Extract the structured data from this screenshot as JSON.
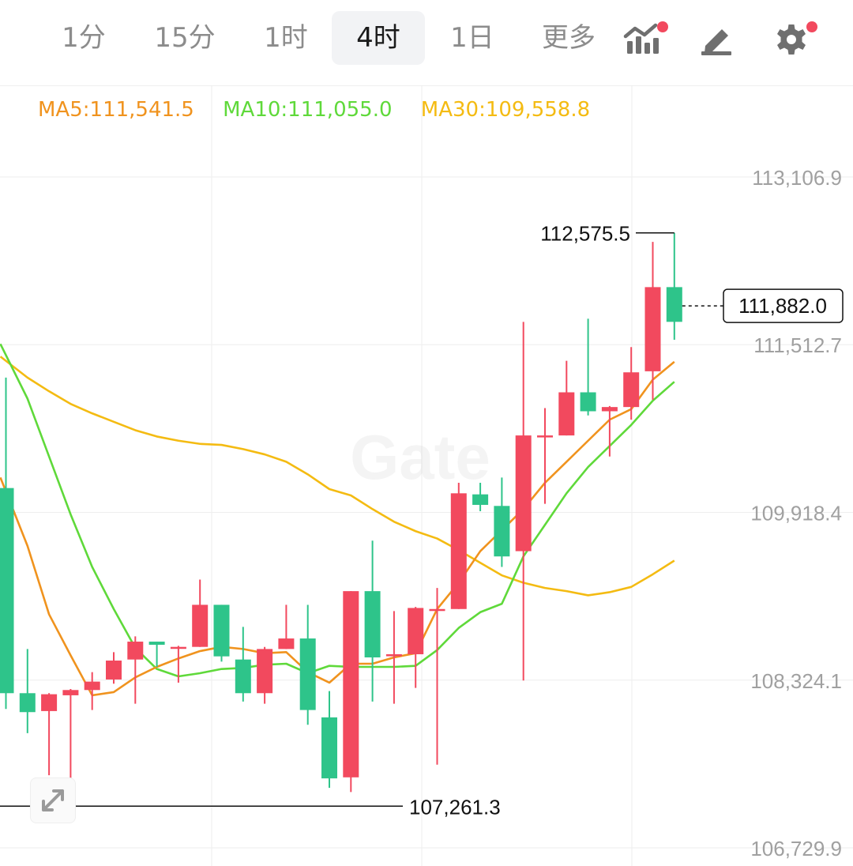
{
  "toolbar": {
    "tabs": [
      {
        "label": "1分",
        "active": false
      },
      {
        "label": "15分",
        "active": false
      },
      {
        "label": "1时",
        "active": false
      },
      {
        "label": "4时",
        "active": true
      },
      {
        "label": "1日",
        "active": false
      },
      {
        "label": "更多",
        "active": false
      }
    ],
    "icons": [
      "indicator-chart-icon",
      "drawing-pen-icon",
      "settings-gear-icon"
    ],
    "badge_color": "#f2495e"
  },
  "legend": {
    "ma5": "MA5:111,541.5",
    "ma10": "MA10:111,055.0",
    "ma30": "MA30:109,558.8"
  },
  "watermark": "Gate",
  "colors": {
    "up": "#f2495e",
    "down": "#2ec48a",
    "ma5": "#f0931e",
    "ma10": "#5fd93a",
    "ma30": "#f4bb12",
    "grid": "#eeeeee",
    "axis_text": "#a0a0a0"
  },
  "chart_data": {
    "type": "candlestick",
    "y_ticks": [
      "113,106.9",
      "111,512.7",
      "109,918.4",
      "108,324.1",
      "106,729.9"
    ],
    "y_tick_values": [
      113106.9,
      111512.7,
      109918.4,
      108324.1,
      106729.9
    ],
    "ylim": [
      106729.9,
      113106.9
    ],
    "high_label": "112,575.5",
    "high_value": 112575.5,
    "low_label": "107,261.3",
    "low_value": 107261.3,
    "last_price_label": "111,882.0",
    "last_price": 111882.0,
    "candles": [
      {
        "o": 110150,
        "c": 108200,
        "h": 111200,
        "l": 108050
      },
      {
        "o": 108200,
        "c": 108020,
        "h": 108620,
        "l": 107820
      },
      {
        "o": 108030,
        "c": 108190,
        "h": 108200,
        "l": 107420
      },
      {
        "o": 108180,
        "c": 108230,
        "h": 108240,
        "l": 107330
      },
      {
        "o": 108230,
        "c": 108310,
        "h": 108400,
        "l": 108040
      },
      {
        "o": 108330,
        "c": 108510,
        "h": 108590,
        "l": 108290
      },
      {
        "o": 108520,
        "c": 108690,
        "h": 108740,
        "l": 108100
      },
      {
        "o": 108690,
        "c": 108660,
        "h": 108690,
        "l": 108450
      },
      {
        "o": 108640,
        "c": 108640,
        "h": 108650,
        "l": 108300
      },
      {
        "o": 108640,
        "c": 109040,
        "h": 109280,
        "l": 108640
      },
      {
        "o": 109040,
        "c": 108550,
        "h": 109040,
        "l": 108500
      },
      {
        "o": 108520,
        "c": 108200,
        "h": 108830,
        "l": 108120
      },
      {
        "o": 108200,
        "c": 108620,
        "h": 108640,
        "l": 108100
      },
      {
        "o": 108620,
        "c": 108720,
        "h": 109040,
        "l": 108620
      },
      {
        "o": 108720,
        "c": 108040,
        "h": 109040,
        "l": 107900
      },
      {
        "o": 107970,
        "c": 107390,
        "h": 108220,
        "l": 107300
      },
      {
        "o": 107400,
        "c": 109170,
        "h": 109170,
        "l": 107260
      },
      {
        "o": 109170,
        "c": 108540,
        "h": 109650,
        "l": 108120
      },
      {
        "o": 108570,
        "c": 108570,
        "h": 108980,
        "l": 108100
      },
      {
        "o": 108570,
        "c": 109010,
        "h": 109020,
        "l": 108250
      },
      {
        "o": 109000,
        "c": 109000,
        "h": 109200,
        "l": 107520
      },
      {
        "o": 109000,
        "c": 110100,
        "h": 110200,
        "l": 109000
      },
      {
        "o": 110090,
        "c": 109990,
        "h": 110200,
        "l": 109930
      },
      {
        "o": 109980,
        "c": 109500,
        "h": 110250,
        "l": 109400
      },
      {
        "o": 109550,
        "c": 110650,
        "h": 111730,
        "l": 108320
      },
      {
        "o": 110650,
        "c": 110650,
        "h": 110910,
        "l": 110000
      },
      {
        "o": 110650,
        "c": 111060,
        "h": 111360,
        "l": 110650
      },
      {
        "o": 111060,
        "c": 110880,
        "h": 111760,
        "l": 110840
      },
      {
        "o": 110880,
        "c": 110920,
        "h": 110930,
        "l": 110450
      },
      {
        "o": 110920,
        "c": 111250,
        "h": 111490,
        "l": 110800
      },
      {
        "o": 111260,
        "c": 112060,
        "h": 112490,
        "l": 110990
      },
      {
        "o": 112060,
        "c": 111730,
        "h": 112575.5,
        "l": 111560
      }
    ],
    "ma_lines": [
      {
        "name": "MA5",
        "values": [
          110250,
          109600,
          108950,
          108560,
          108180,
          108210,
          108350,
          108450,
          108530,
          108600,
          108640,
          108620,
          108580,
          108590,
          108400,
          108300,
          108480,
          108480,
          108540,
          108580,
          109000,
          109250,
          109550,
          109750,
          109950,
          110200,
          110400,
          110600,
          110800,
          110900,
          111180,
          111350
        ]
      },
      {
        "name": "MA10",
        "values": [
          111520,
          111000,
          110450,
          109900,
          109400,
          109000,
          108630,
          108430,
          108360,
          108390,
          108430,
          108440,
          108470,
          108480,
          108390,
          108460,
          108450,
          108450,
          108450,
          108460,
          108610,
          108820,
          108970,
          109050,
          109500,
          109800,
          110100,
          110350,
          110550,
          110750,
          110980,
          111160
        ]
      },
      {
        "name": "MA30",
        "values": [
          111400,
          111200,
          111070,
          110950,
          110860,
          110780,
          110700,
          110640,
          110600,
          110570,
          110560,
          110520,
          110470,
          110400,
          110280,
          110140,
          110080,
          109950,
          109830,
          109740,
          109670,
          109560,
          109440,
          109320,
          109250,
          109200,
          109170,
          109130,
          109160,
          109210,
          109330,
          109460
        ]
      }
    ]
  }
}
